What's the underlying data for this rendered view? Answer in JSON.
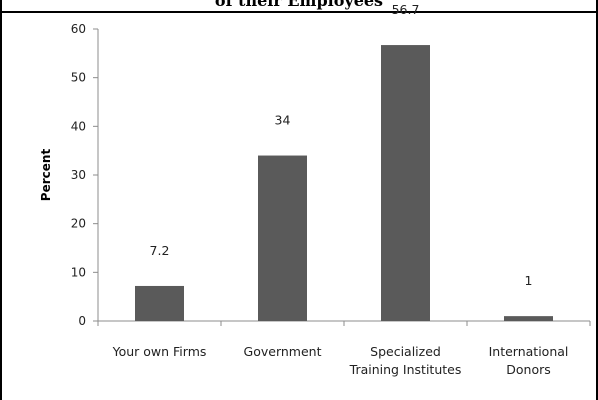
{
  "chart_data": {
    "type": "bar",
    "title": "of their Employees",
    "ylabel": "Percent",
    "xlabel": "",
    "categories": [
      [
        "Your own Firms"
      ],
      [
        "Government"
      ],
      [
        "Specialized",
        "Training Institutes"
      ],
      [
        "International",
        "Donors"
      ]
    ],
    "values": [
      7.2,
      34,
      56.7,
      1
    ],
    "data_labels": [
      "7.2",
      "34",
      "56.7",
      "1"
    ],
    "ylim": [
      0,
      60
    ],
    "yticks": [
      0,
      10,
      20,
      30,
      40,
      50,
      60
    ],
    "grid": false,
    "legend": "none",
    "bar_color": "#5a5a5a"
  }
}
